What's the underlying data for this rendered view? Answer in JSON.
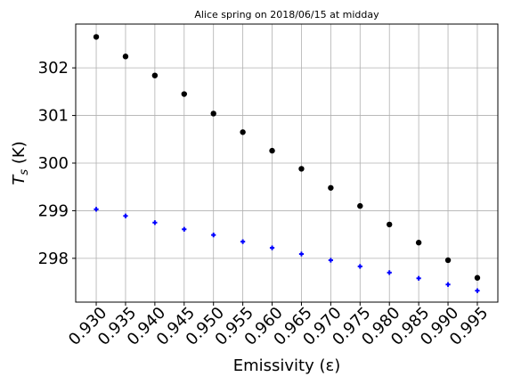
{
  "chart_data": {
    "type": "scatter",
    "title": "Alice spring on 2018/06/15 at midday",
    "xlabel": "Emissivity (ε)",
    "ylabel_main": "T",
    "ylabel_sub": "s",
    "ylabel_unit": " (K)",
    "x": [
      0.93,
      0.935,
      0.94,
      0.945,
      0.95,
      0.955,
      0.96,
      0.965,
      0.97,
      0.975,
      0.98,
      0.985,
      0.99,
      0.995
    ],
    "x_tick_labels": [
      "0.930",
      "0.935",
      "0.940",
      "0.945",
      "0.950",
      "0.955",
      "0.960",
      "0.965",
      "0.970",
      "0.975",
      "0.980",
      "0.985",
      "0.990",
      "0.995"
    ],
    "y_ticks": [
      298,
      299,
      300,
      301,
      302
    ],
    "xlim": [
      0.9265,
      0.9985
    ],
    "ylim": [
      297.08,
      302.92
    ],
    "grid": true,
    "series": [
      {
        "marker": "circle",
        "color": "#000000",
        "values": [
          302.65,
          302.24,
          301.84,
          301.45,
          301.04,
          300.65,
          300.26,
          299.88,
          299.48,
          299.1,
          298.71,
          298.33,
          297.96,
          297.59
        ]
      },
      {
        "marker": "plus",
        "color": "#0000ff",
        "values": [
          299.03,
          298.89,
          298.75,
          298.61,
          298.49,
          298.35,
          298.22,
          298.09,
          297.96,
          297.83,
          297.7,
          297.58,
          297.45,
          297.32
        ]
      }
    ]
  }
}
